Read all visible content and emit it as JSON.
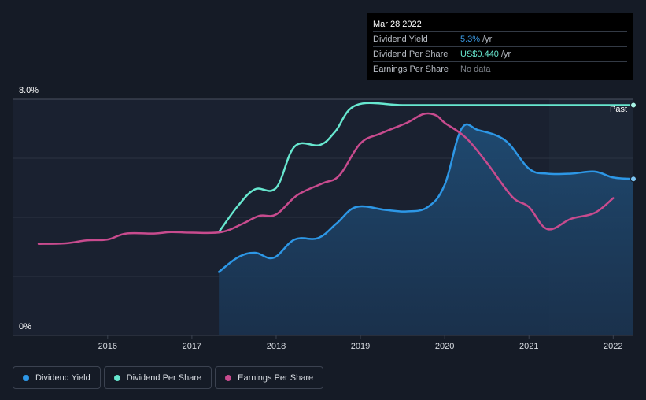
{
  "tooltip": {
    "date": "Mar 28 2022",
    "rows": [
      {
        "label": "Dividend Yield",
        "value": "5.3%",
        "unit": "/yr",
        "color": "#3a9be6"
      },
      {
        "label": "Dividend Per Share",
        "value": "US$0.440",
        "unit": "/yr",
        "color": "#67e7cf"
      },
      {
        "label": "Earnings Per Share",
        "value": "No data",
        "unit": "",
        "color": "#7d828a"
      }
    ]
  },
  "legend": [
    {
      "label": "Dividend Yield",
      "color": "#2d97e6"
    },
    {
      "label": "Dividend Per Share",
      "color": "#67e7cf"
    },
    {
      "label": "Earnings Per Share",
      "color": "#c84b8e"
    }
  ],
  "chart_data": {
    "type": "line",
    "y_axis": {
      "top_label": "8.0%",
      "bottom_label": "0%",
      "ylim": [
        0,
        8
      ]
    },
    "x_axis": {
      "range": [
        2015.18,
        2022.24
      ],
      "ticks": [
        2016,
        2017,
        2018,
        2019,
        2020,
        2021,
        2022
      ]
    },
    "past_label": "Past",
    "forecast_start": 2021.24,
    "series": [
      {
        "name": "Dividend Yield",
        "color": "#2d97e6",
        "fill": true,
        "points": [
          [
            2017.32,
            2.15
          ],
          [
            2017.55,
            2.65
          ],
          [
            2017.75,
            2.8
          ],
          [
            2017.97,
            2.63
          ],
          [
            2018.22,
            3.25
          ],
          [
            2018.5,
            3.3
          ],
          [
            2018.72,
            3.8
          ],
          [
            2018.95,
            4.35
          ],
          [
            2019.3,
            4.25
          ],
          [
            2019.55,
            4.2
          ],
          [
            2019.8,
            4.35
          ],
          [
            2020.0,
            5.1
          ],
          [
            2020.2,
            7.0
          ],
          [
            2020.4,
            6.95
          ],
          [
            2020.72,
            6.6
          ],
          [
            2021.0,
            5.65
          ],
          [
            2021.22,
            5.48
          ],
          [
            2021.5,
            5.48
          ],
          [
            2021.78,
            5.55
          ],
          [
            2022.0,
            5.35
          ],
          [
            2022.24,
            5.3
          ]
        ]
      },
      {
        "name": "Dividend Per Share",
        "color": "#67e7cf",
        "fill": false,
        "points": [
          [
            2017.32,
            3.5
          ],
          [
            2017.55,
            4.4
          ],
          [
            2017.75,
            4.95
          ],
          [
            2018.0,
            5.0
          ],
          [
            2018.22,
            6.4
          ],
          [
            2018.52,
            6.45
          ],
          [
            2018.7,
            6.9
          ],
          [
            2018.95,
            7.8
          ],
          [
            2019.5,
            7.8
          ],
          [
            2020.0,
            7.8
          ],
          [
            2020.5,
            7.8
          ],
          [
            2021.0,
            7.8
          ],
          [
            2021.5,
            7.8
          ],
          [
            2022.24,
            7.8
          ]
        ]
      },
      {
        "name": "Earnings Per Share",
        "color": "#c84b8e",
        "fill": false,
        "points": [
          [
            2015.18,
            3.1
          ],
          [
            2015.5,
            3.12
          ],
          [
            2015.75,
            3.22
          ],
          [
            2016.0,
            3.25
          ],
          [
            2016.22,
            3.45
          ],
          [
            2016.55,
            3.45
          ],
          [
            2016.75,
            3.5
          ],
          [
            2017.0,
            3.48
          ],
          [
            2017.35,
            3.5
          ],
          [
            2017.6,
            3.78
          ],
          [
            2017.8,
            4.05
          ],
          [
            2018.0,
            4.1
          ],
          [
            2018.25,
            4.75
          ],
          [
            2018.55,
            5.15
          ],
          [
            2018.75,
            5.42
          ],
          [
            2019.0,
            6.5
          ],
          [
            2019.25,
            6.85
          ],
          [
            2019.55,
            7.2
          ],
          [
            2019.75,
            7.5
          ],
          [
            2019.9,
            7.45
          ],
          [
            2020.0,
            7.2
          ],
          [
            2020.25,
            6.7
          ],
          [
            2020.5,
            5.85
          ],
          [
            2020.8,
            4.7
          ],
          [
            2021.0,
            4.35
          ],
          [
            2021.22,
            3.6
          ],
          [
            2021.5,
            3.95
          ],
          [
            2021.78,
            4.15
          ],
          [
            2022.0,
            4.65
          ]
        ]
      }
    ]
  }
}
